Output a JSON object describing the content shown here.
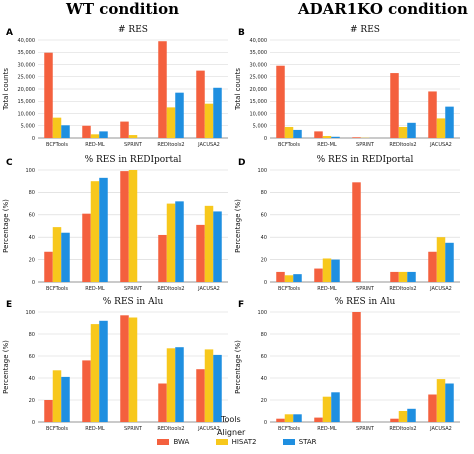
{
  "header": {
    "left_title": "WT condition",
    "right_title": "ADAR1KO condition"
  },
  "xaxis_title": "Tools",
  "legend": {
    "title": "Aligner",
    "items": [
      {
        "label": "BWA",
        "color": "#f4603e"
      },
      {
        "label": "HISAT2",
        "color": "#f7c81c"
      },
      {
        "label": "STAR",
        "color": "#1f8fe0"
      }
    ]
  },
  "chart_data": [
    {
      "panel": "A",
      "type": "bar",
      "title": "# RES",
      "ylabel": "Total counts",
      "categories": [
        "BCFTools",
        "RED-ML",
        "SPRINT",
        "REDItools2",
        "JACUSA2"
      ],
      "ylim": [
        0,
        40000
      ],
      "yticks": [
        0,
        5000,
        10000,
        15000,
        20000,
        25000,
        30000,
        35000,
        40000
      ],
      "ytick_labels": [
        "0",
        "5,000",
        "10,000",
        "15,000",
        "20,000",
        "25,000",
        "30,000",
        "35,000",
        "40,000"
      ],
      "series": [
        {
          "name": "BWA",
          "values": [
            34800,
            5000,
            6700,
            39500,
            27500
          ]
        },
        {
          "name": "HISAT2",
          "values": [
            8300,
            1500,
            1200,
            12500,
            14000
          ]
        },
        {
          "name": "STAR",
          "values": [
            5200,
            2700,
            0,
            18500,
            20500
          ]
        }
      ]
    },
    {
      "panel": "B",
      "type": "bar",
      "title": "# RES",
      "ylabel": "Total counts",
      "categories": [
        "BCFTools",
        "RED-ML",
        "SPRINT",
        "REDItools2",
        "JACUSA2"
      ],
      "ylim": [
        0,
        40000
      ],
      "yticks": [
        0,
        5000,
        10000,
        15000,
        20000,
        25000,
        30000,
        35000,
        40000
      ],
      "ytick_labels": [
        "0",
        "5,000",
        "10,000",
        "15,000",
        "20,000",
        "25,000",
        "30,000",
        "35,000",
        "40,000"
      ],
      "series": [
        {
          "name": "BWA",
          "values": [
            29500,
            2700,
            300,
            26500,
            19000
          ]
        },
        {
          "name": "HISAT2",
          "values": [
            4500,
            800,
            100,
            4500,
            8000
          ]
        },
        {
          "name": "STAR",
          "values": [
            3300,
            500,
            0,
            6200,
            12800
          ]
        }
      ]
    },
    {
      "panel": "C",
      "type": "bar",
      "title": "% RES in REDIportal",
      "ylabel": "Percentage (%)",
      "categories": [
        "BCFTools",
        "RED-ML",
        "SPRINT",
        "REDItools2",
        "JACUSA2"
      ],
      "ylim": [
        0,
        100
      ],
      "yticks": [
        0,
        20,
        40,
        60,
        80,
        100
      ],
      "ytick_labels": [
        "0",
        "20",
        "40",
        "60",
        "80",
        "100"
      ],
      "series": [
        {
          "name": "BWA",
          "values": [
            27,
            61,
            99,
            42,
            51
          ]
        },
        {
          "name": "HISAT2",
          "values": [
            49,
            90,
            100,
            70,
            68
          ]
        },
        {
          "name": "STAR",
          "values": [
            44,
            93,
            0,
            72,
            63
          ]
        }
      ]
    },
    {
      "panel": "D",
      "type": "bar",
      "title": "% RES in REDIportal",
      "ylabel": "Percentage (%)",
      "categories": [
        "BCFTools",
        "RED-ML",
        "SPRINT",
        "REDItools2",
        "JACUSA2"
      ],
      "ylim": [
        0,
        100
      ],
      "yticks": [
        0,
        20,
        40,
        60,
        80,
        100
      ],
      "ytick_labels": [
        "0",
        "20",
        "40",
        "60",
        "80",
        "100"
      ],
      "series": [
        {
          "name": "BWA",
          "values": [
            9,
            12,
            89,
            9,
            27
          ]
        },
        {
          "name": "HISAT2",
          "values": [
            6,
            21,
            0,
            9,
            40
          ]
        },
        {
          "name": "STAR",
          "values": [
            7,
            20,
            0,
            9,
            35
          ]
        }
      ]
    },
    {
      "panel": "E",
      "type": "bar",
      "title": "% RES in Alu",
      "ylabel": "Percentage (%)",
      "categories": [
        "BCFTools",
        "RED-ML",
        "SPRINT",
        "REDItools2",
        "JACUSA2"
      ],
      "ylim": [
        0,
        100
      ],
      "yticks": [
        0,
        20,
        40,
        60,
        80,
        100
      ],
      "ytick_labels": [
        "0",
        "20",
        "40",
        "60",
        "80",
        "100"
      ],
      "series": [
        {
          "name": "BWA",
          "values": [
            20,
            56,
            97,
            35,
            48
          ]
        },
        {
          "name": "HISAT2",
          "values": [
            47,
            89,
            95,
            67,
            66
          ]
        },
        {
          "name": "STAR",
          "values": [
            41,
            92,
            0,
            68,
            61
          ]
        }
      ]
    },
    {
      "panel": "F",
      "type": "bar",
      "title": "% RES in Alu",
      "ylabel": "Percentage (%)",
      "categories": [
        "BCFTools",
        "RED-ML",
        "SPRINT",
        "REDItools2",
        "JACUSA2"
      ],
      "ylim": [
        0,
        100
      ],
      "yticks": [
        0,
        20,
        40,
        60,
        80,
        100
      ],
      "ytick_labels": [
        "0",
        "20",
        "40",
        "60",
        "80",
        "100"
      ],
      "series": [
        {
          "name": "BWA",
          "values": [
            3,
            4,
            100,
            3,
            25
          ]
        },
        {
          "name": "HISAT2",
          "values": [
            7,
            23,
            0,
            10,
            39
          ]
        },
        {
          "name": "STAR",
          "values": [
            7,
            27,
            0,
            12,
            35
          ]
        }
      ]
    }
  ]
}
